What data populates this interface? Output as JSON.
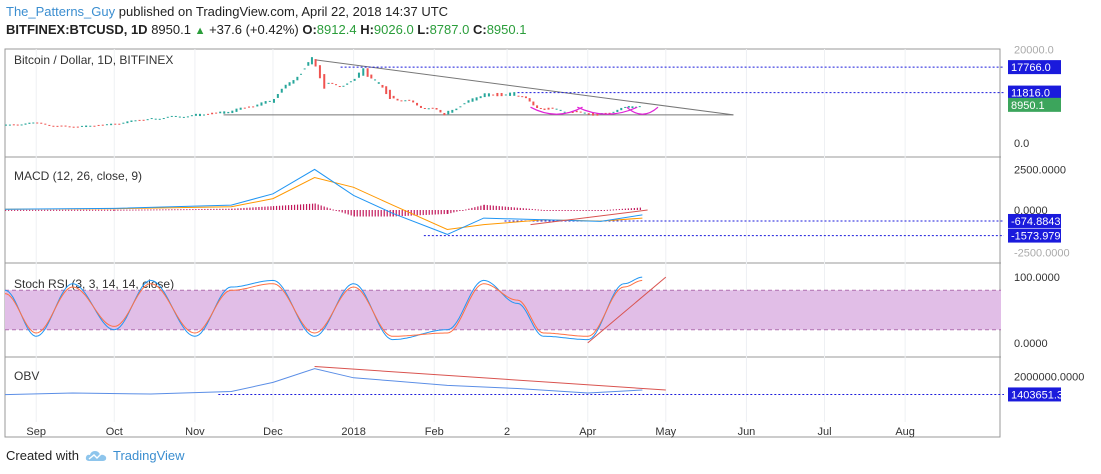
{
  "header": {
    "author": "The_Patterns_Guy",
    "published_text": "published on TradingView.com, April 22, 2018 14:37 UTC",
    "symbol": "BITFINEX:BTCUSD, 1D",
    "last": "8950.1",
    "change": "+37.6 (+0.42%)",
    "o_label": "O:",
    "o": "8912.4",
    "h_label": "H:",
    "h": "9026.0",
    "l_label": "L:",
    "l": "8787.0",
    "c_label": "C:",
    "c": "8950.1"
  },
  "footer": {
    "created_with": "Created with",
    "brand": "TradingView"
  },
  "colors": {
    "up": "#26a69a",
    "down": "#ef5350",
    "macd": "#2196f3",
    "signal": "#ff9800",
    "stoch_band": "#e1bee7",
    "blue_label": "#1a1adc",
    "green_label": "#3ca55c"
  },
  "chart_data": [
    {
      "type": "line",
      "pane": "price",
      "title": "Bitcoin / Dollar, 1D, BITFINEX",
      "y_ticks": [
        "20000.0",
        "0.0"
      ],
      "ylim": [
        -3000,
        22000
      ],
      "price_labels": [
        "17766.0",
        "11816.0",
        "8950.1"
      ],
      "x": [
        "2017-08-20",
        "2017-09-01",
        "2017-09-15",
        "2017-10-01",
        "2017-10-15",
        "2017-11-01",
        "2017-11-15",
        "2017-12-01",
        "2017-12-10",
        "2017-12-17",
        "2017-12-22",
        "2018-01-01",
        "2018-01-06",
        "2018-01-16",
        "2018-02-06",
        "2018-02-20",
        "2018-03-05",
        "2018-03-15",
        "2018-04-01",
        "2018-04-06",
        "2018-04-15",
        "2018-04-22"
      ],
      "values": [
        4100,
        4700,
        3700,
        4400,
        5700,
        6500,
        7300,
        9800,
        15000,
        19500,
        13500,
        14000,
        17000,
        11000,
        6900,
        11200,
        11500,
        8200,
        6900,
        6600,
        8000,
        8950
      ]
    },
    {
      "type": "line",
      "pane": "macd",
      "title": "MACD (12, 26, close, 9)",
      "y_ticks": [
        "2500.0000",
        "0.0000",
        "-2500.0000"
      ],
      "ylim": [
        -3200,
        3200
      ],
      "price_labels": [
        "-674.8843",
        "-1573.9795"
      ],
      "x": [
        "2017-08-20",
        "2017-10-01",
        "2017-11-15",
        "2017-12-01",
        "2017-12-17",
        "2018-01-01",
        "2018-01-16",
        "2018-02-06",
        "2018-02-20",
        "2018-03-15",
        "2018-04-06",
        "2018-04-22"
      ],
      "series": [
        {
          "name": "MACD",
          "values": [
            50,
            100,
            300,
            1000,
            2500,
            900,
            -200,
            -1500,
            -500,
            -600,
            -700,
            -300
          ]
        },
        {
          "name": "Signal",
          "values": [
            40,
            80,
            200,
            700,
            2000,
            1400,
            300,
            -1200,
            -900,
            -600,
            -680,
            -500
          ]
        }
      ]
    },
    {
      "type": "line",
      "pane": "stoch_rsi",
      "title": "Stoch RSI (3, 3, 14, 14, close)",
      "y_ticks": [
        "100.0000",
        "0.0000"
      ],
      "ylim": [
        -20,
        120
      ],
      "band": [
        20,
        80
      ],
      "x": [
        "2017-08-20",
        "2017-09-01",
        "2017-09-15",
        "2017-10-01",
        "2017-10-15",
        "2017-11-01",
        "2017-11-15",
        "2017-12-01",
        "2017-12-17",
        "2018-01-01",
        "2018-01-16",
        "2018-02-06",
        "2018-02-20",
        "2018-03-05",
        "2018-03-15",
        "2018-04-01",
        "2018-04-15",
        "2018-04-22"
      ],
      "series": [
        {
          "name": "K",
          "values": [
            80,
            10,
            90,
            20,
            95,
            10,
            85,
            95,
            10,
            90,
            5,
            20,
            95,
            60,
            10,
            5,
            90,
            100
          ]
        },
        {
          "name": "D",
          "values": [
            75,
            15,
            85,
            25,
            90,
            15,
            80,
            90,
            15,
            85,
            10,
            15,
            90,
            65,
            15,
            10,
            85,
            95
          ]
        }
      ]
    },
    {
      "type": "line",
      "pane": "obv",
      "title": "OBV",
      "y_ticks": [
        "2000000.0000"
      ],
      "ylim": [
        500000,
        2600000
      ],
      "price_labels": [
        "1403651.3754"
      ],
      "x": [
        "2017-08-20",
        "2017-09-15",
        "2017-10-15",
        "2017-11-15",
        "2017-12-01",
        "2017-12-17",
        "2018-01-01",
        "2018-01-16",
        "2018-02-06",
        "2018-03-05",
        "2018-04-01",
        "2018-04-22"
      ],
      "values": [
        1400000,
        1450000,
        1420000,
        1500000,
        1800000,
        2250000,
        1950000,
        1850000,
        1700000,
        1600000,
        1450000,
        1550000
      ],
      "x_labels": [
        "Sep",
        "Oct",
        "Nov",
        "Dec",
        "2018",
        "Feb",
        "2",
        "Apr",
        "May",
        "Jun",
        "Jul",
        "Aug"
      ]
    }
  ]
}
